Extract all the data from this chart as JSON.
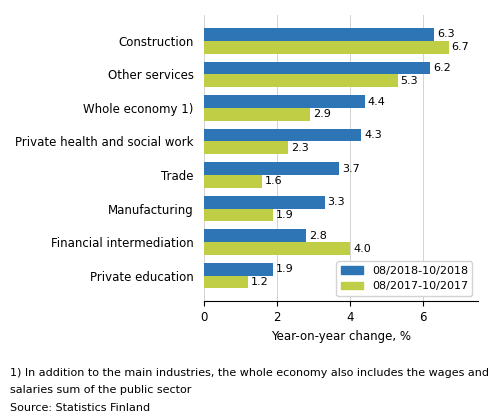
{
  "categories": [
    "Construction",
    "Other services",
    "Whole economy 1)",
    "Private health and social work",
    "Trade",
    "Manufacturing",
    "Financial intermediation",
    "Private education"
  ],
  "series1_label": "08/2018-10/2018",
  "series2_label": "08/2017-10/2017",
  "series1_values": [
    6.3,
    6.2,
    4.4,
    4.3,
    3.7,
    3.3,
    2.8,
    1.9
  ],
  "series2_values": [
    6.7,
    5.3,
    2.9,
    2.3,
    1.6,
    1.9,
    4.0,
    1.2
  ],
  "series1_color": "#2E75B6",
  "series2_color": "#BFCE45",
  "xlabel": "Year-on-year change, %",
  "xlim": [
    0,
    7.5
  ],
  "xticks": [
    0,
    2,
    4,
    6
  ],
  "footnote1": "1) In addition to the main industries, the whole economy also includes the wages and",
  "footnote2": "salaries sum of the public sector",
  "source": "Source: Statistics Finland",
  "bar_height": 0.38,
  "label_fontsize": 8.5,
  "tick_fontsize": 8.5,
  "value_fontsize": 8,
  "legend_fontsize": 8,
  "footnote_fontsize": 8
}
